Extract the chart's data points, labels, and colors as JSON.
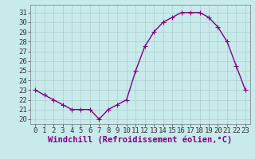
{
  "x": [
    0,
    1,
    2,
    3,
    4,
    5,
    6,
    7,
    8,
    9,
    10,
    11,
    12,
    13,
    14,
    15,
    16,
    17,
    18,
    19,
    20,
    21,
    22,
    23
  ],
  "y": [
    23,
    22.5,
    22,
    21.5,
    21,
    21,
    21,
    20,
    21,
    21.5,
    22,
    25,
    27.5,
    29,
    30,
    30.5,
    31,
    31,
    31,
    30.5,
    29.5,
    28,
    25.5,
    23
  ],
  "line_color": "#800080",
  "marker_color": "#800080",
  "bg_color": "#c8eaea",
  "grid_color": "#aacccc",
  "xlabel": "Windchill (Refroidissement éolien,°C)",
  "xlim": [
    -0.5,
    23.5
  ],
  "ylim": [
    19.5,
    31.8
  ],
  "yticks": [
    20,
    21,
    22,
    23,
    24,
    25,
    26,
    27,
    28,
    29,
    30,
    31
  ],
  "xticks": [
    0,
    1,
    2,
    3,
    4,
    5,
    6,
    7,
    8,
    9,
    10,
    11,
    12,
    13,
    14,
    15,
    16,
    17,
    18,
    19,
    20,
    21,
    22,
    23
  ],
  "tick_label_fontsize": 6.5,
  "xlabel_fontsize": 7.5,
  "line_width": 1.0,
  "marker_size": 2.5
}
